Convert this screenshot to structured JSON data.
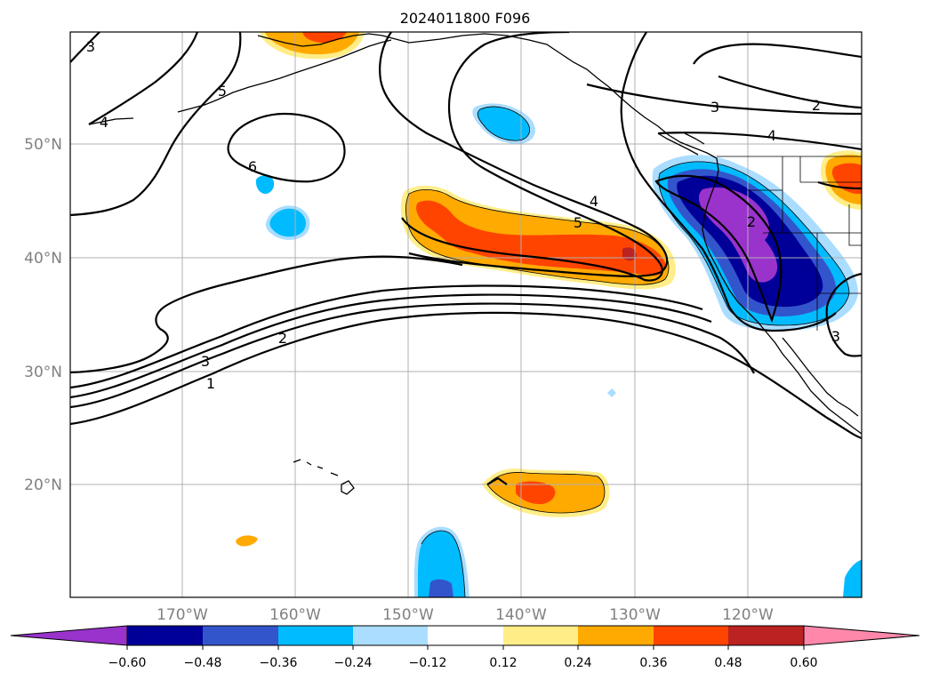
{
  "title": "2024011800 F096",
  "map": {
    "lat_labels": [
      "50°N",
      "40°N",
      "30°N",
      "20°N"
    ],
    "lon_labels": [
      "170°W",
      "160°W",
      "150°W",
      "140°W",
      "130°W",
      "120°W"
    ],
    "contour_labels": [
      "3",
      "4",
      "5",
      "6",
      "4",
      "5",
      "3",
      "2",
      "4",
      "2",
      "3",
      "2",
      "1",
      "3"
    ]
  },
  "colorbar": {
    "colors": [
      "#9933cc",
      "#000099",
      "#3355cc",
      "#00bbff",
      "#aaddff",
      "#ffffff",
      "#ffee88",
      "#ffaa00",
      "#ff4400",
      "#bb2222",
      "#ff88aa"
    ],
    "ticks": [
      "−0.60",
      "−0.48",
      "−0.36",
      "−0.24",
      "−0.12",
      "0.12",
      "0.24",
      "0.36",
      "0.48",
      "0.60"
    ]
  }
}
